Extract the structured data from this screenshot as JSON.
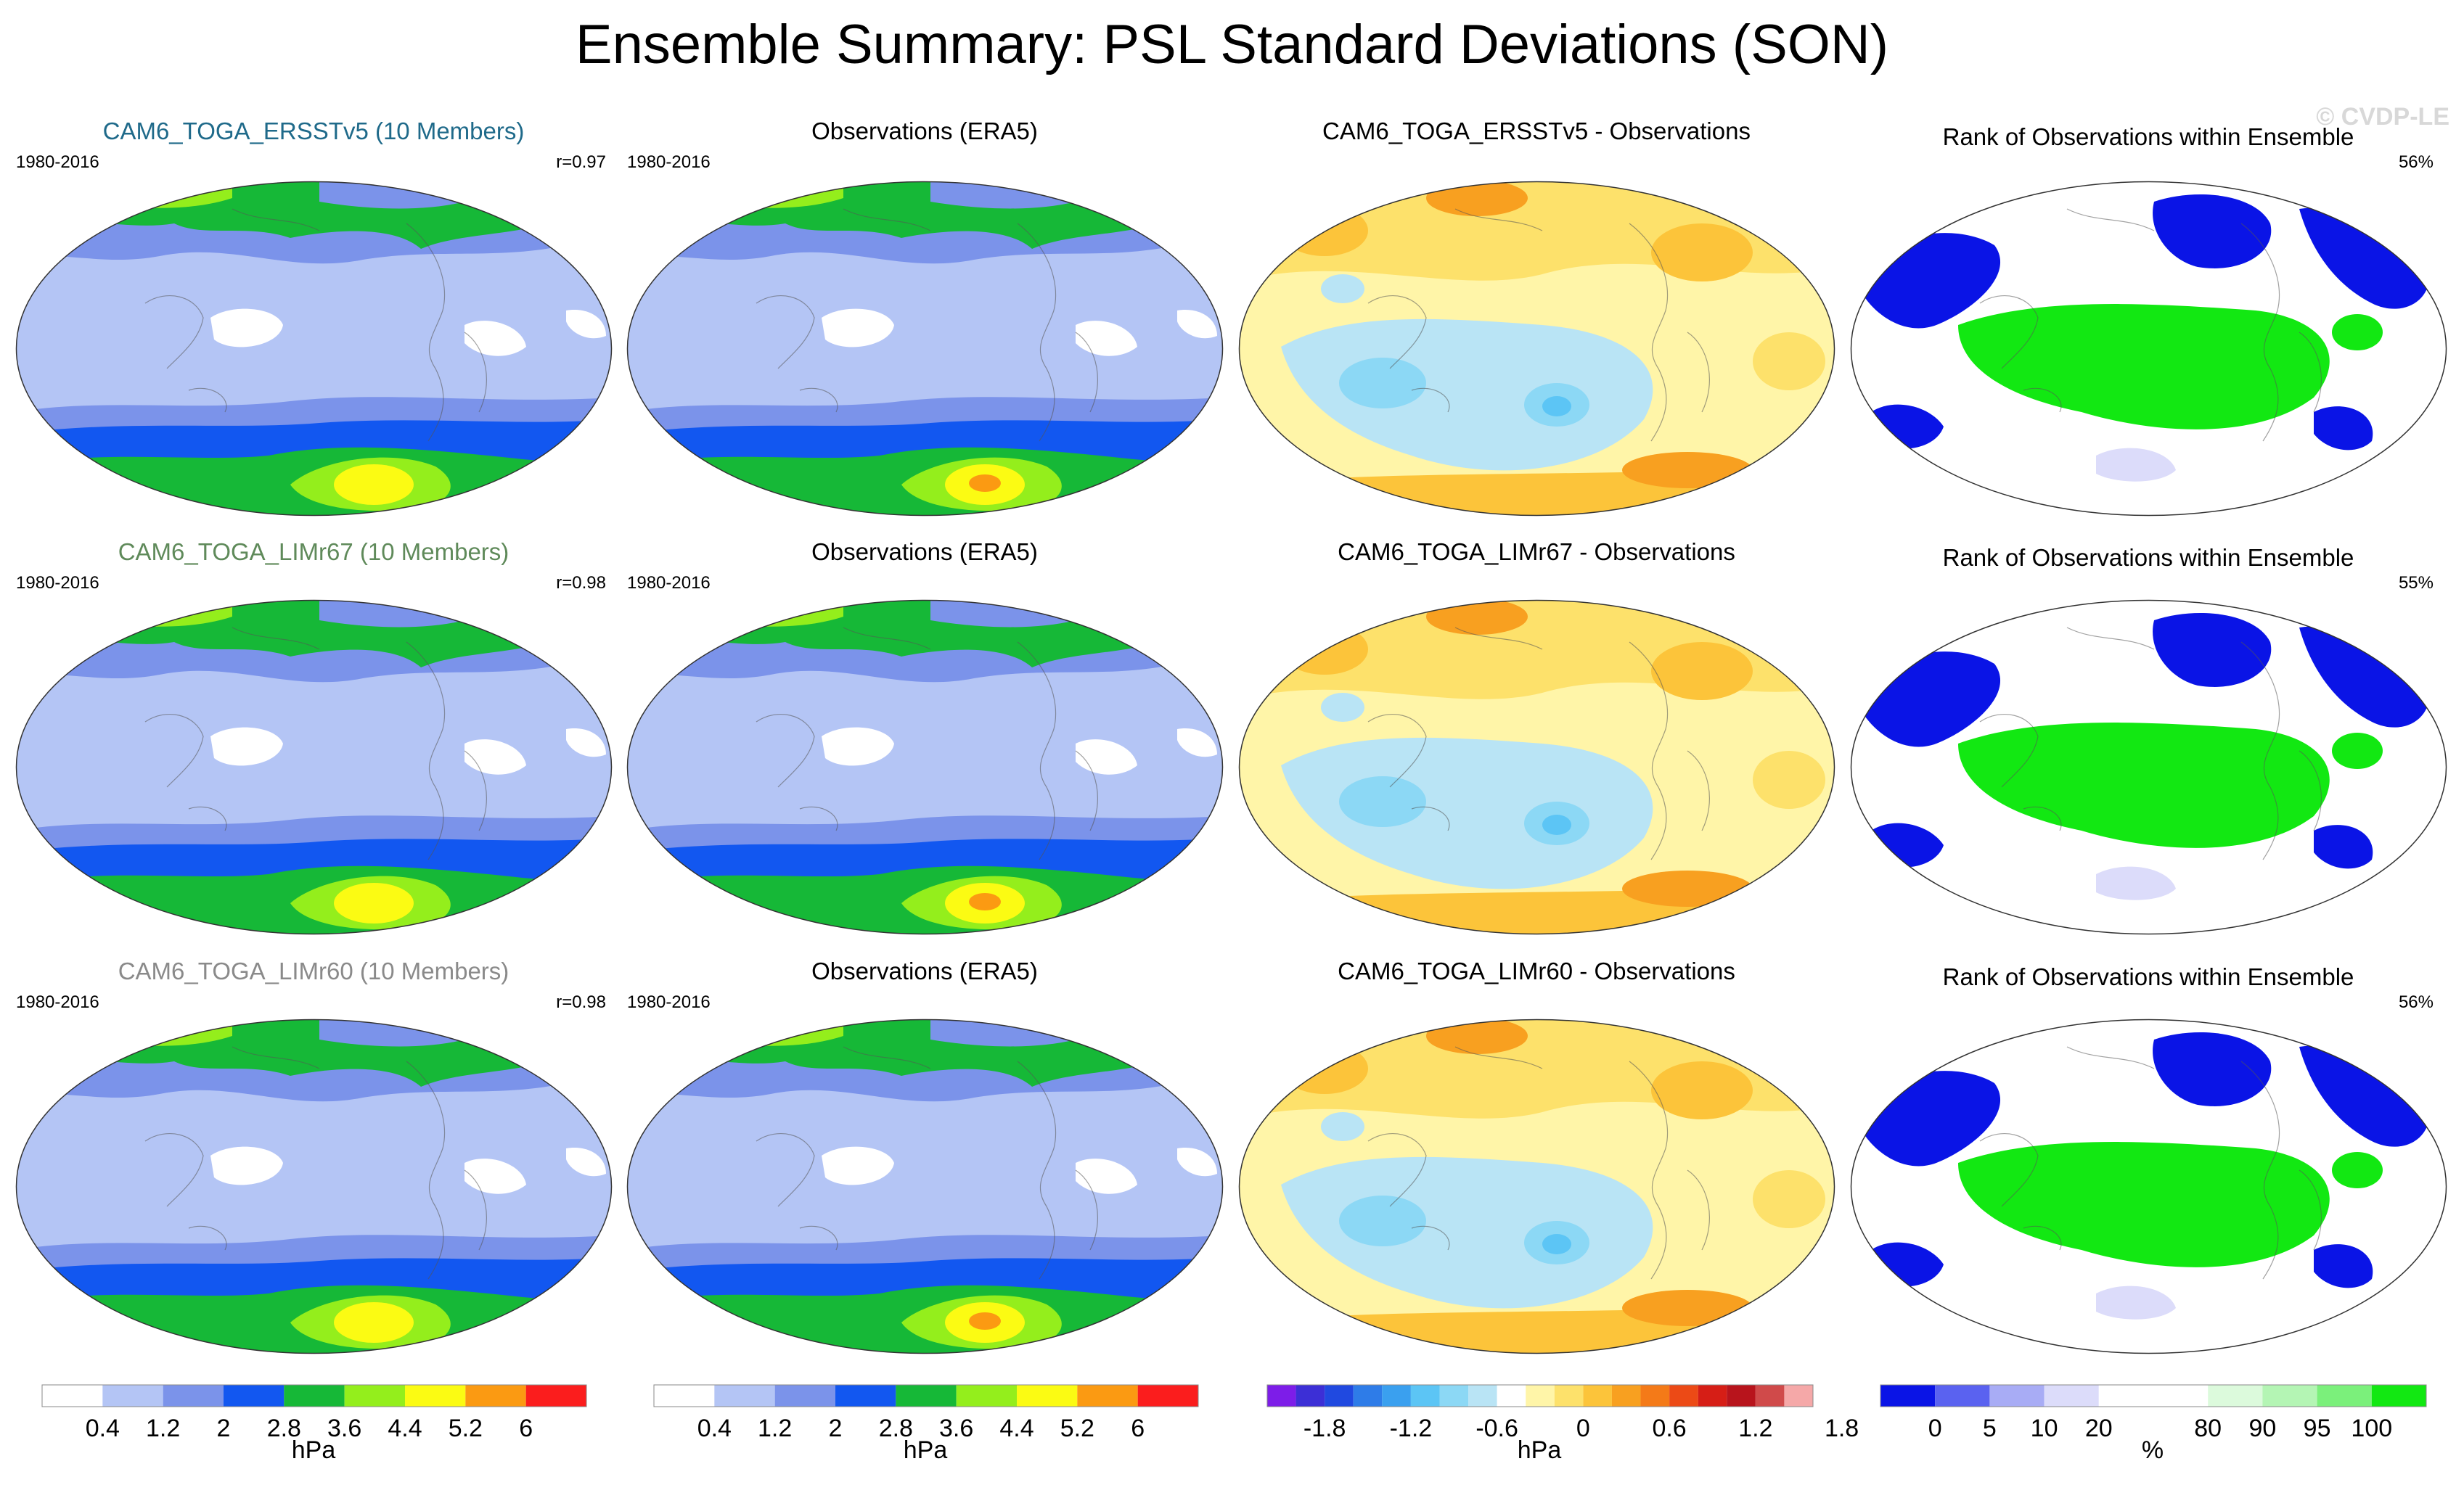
{
  "title": "Ensemble Summary: PSL Standard Deviations (SON)",
  "watermark": "© CVDP-LE",
  "rows": [
    {
      "model_title": "CAM6_TOGA_ERSSTv5 (10 Members)",
      "model_title_color": "#1f6a8a",
      "model_years": "1980-2016",
      "pattern_corr": "r=0.97",
      "obs_title": "Observations (ERA5)",
      "obs_years": "1980-2016",
      "diff_title": "CAM6_TOGA_ERSSTv5 - Observations",
      "rank_title": "Rank of Observations within Ensemble",
      "rank_pct": "56%"
    },
    {
      "model_title": "CAM6_TOGA_LIMr67 (10 Members)",
      "model_title_color": "#5f8a5a",
      "model_years": "1980-2016",
      "pattern_corr": "r=0.98",
      "obs_title": "Observations (ERA5)",
      "obs_years": "1980-2016",
      "diff_title": "CAM6_TOGA_LIMr67 - Observations",
      "rank_title": "Rank of Observations within Ensemble",
      "rank_pct": "55%"
    },
    {
      "model_title": "CAM6_TOGA_LIMr60 (10 Members)",
      "model_title_color": "#8a8a8a",
      "model_years": "1980-2016",
      "pattern_corr": "r=0.98",
      "obs_title": "Observations (ERA5)",
      "obs_years": "1980-2016",
      "diff_title": "CAM6_TOGA_LIMr60 - Observations",
      "rank_title": "Rank of Observations within Ensemble",
      "rank_pct": "56%"
    }
  ],
  "colorbars": {
    "std": {
      "colors": [
        "#ffffff",
        "#b4c5f5",
        "#7b93ea",
        "#1257f0",
        "#16b837",
        "#94ee1c",
        "#fbfb13",
        "#fb9a12",
        "#fb1d1d"
      ],
      "ticks": [
        "0.4",
        "1.2",
        "2",
        "2.8",
        "3.6",
        "4.4",
        "5.2",
        "6"
      ],
      "unit": "hPa"
    },
    "diff": {
      "colors": [
        "#7d1de8",
        "#3c2fd6",
        "#2049e0",
        "#2e7ce8",
        "#3aa0ef",
        "#5cc5f5",
        "#8cd8f5",
        "#b9e4f5",
        "#ffffff",
        "#fff5a8",
        "#fde16b",
        "#fcc43a",
        "#f8a020",
        "#f47a18",
        "#ec4a16",
        "#d61e16",
        "#b8141c",
        "#d04a4a",
        "#f5a8a8"
      ],
      "ticks": [
        "-1.8",
        "-1.2",
        "-0.6",
        "0",
        "0.6",
        "1.2",
        "1.8"
      ],
      "unit": "hPa"
    },
    "rank": {
      "colors": [
        "#0a14e6",
        "#5a62f0",
        "#a8acf5",
        "#dcdcfa",
        "#ffffff",
        "#ffffff",
        "#dcfadc",
        "#b4f5b4",
        "#7bf07b",
        "#12e812"
      ],
      "ticks": [
        "0",
        "5",
        "10",
        "20",
        "80",
        "90",
        "95",
        "100"
      ],
      "unit": "%"
    }
  }
}
